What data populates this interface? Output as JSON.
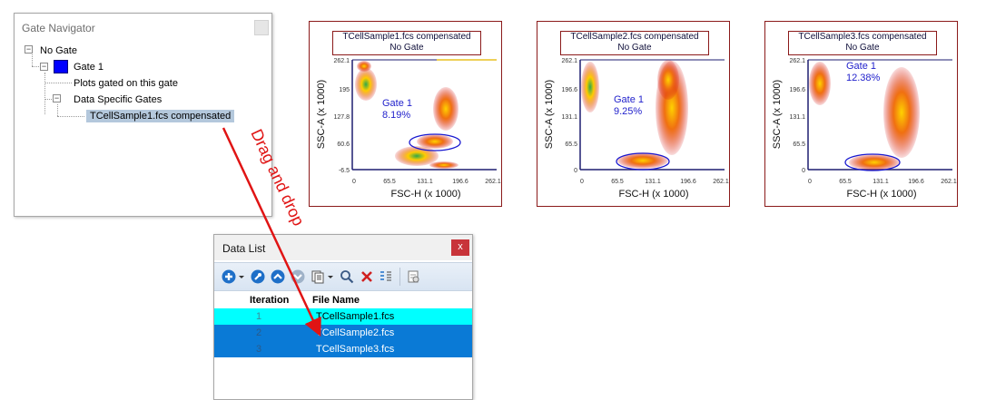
{
  "gate_navigator": {
    "title": "Gate Navigator",
    "tree": {
      "root": "No Gate",
      "gate": "Gate 1",
      "plots_node": "Plots gated on this gate",
      "data_specific": "Data Specific Gates",
      "selected_item": "TCellSample1.fcs compensated"
    }
  },
  "annotation": {
    "text": "Drag and drop",
    "color": "#e01414"
  },
  "plots": [
    {
      "title": "TCellSample1.fcs compensated",
      "subtitle": "No Gate",
      "xlabel": "FSC-H (x 1000)",
      "ylabel": "SSC-A (x 1000)",
      "xticks": [
        "0",
        "65.5",
        "131.1",
        "196.6",
        "262.1"
      ],
      "yticks": [
        "262.1",
        "195",
        "127.8",
        "60.6",
        "-6.5"
      ],
      "gate_label": "Gate 1",
      "gate_pct": "8.19%"
    },
    {
      "title": "TCellSample2.fcs compensated",
      "subtitle": "No Gate",
      "xlabel": "FSC-H (x 1000)",
      "ylabel": "SSC-A (x 1000)",
      "xticks": [
        "0",
        "65.5",
        "131.1",
        "196.6",
        "262.1"
      ],
      "yticks": [
        "262.1",
        "196.6",
        "131.1",
        "65.5",
        "0"
      ],
      "gate_label": "Gate 1",
      "gate_pct": "9.25%"
    },
    {
      "title": "TCellSample3.fcs compensated",
      "subtitle": "No Gate",
      "xlabel": "FSC-H (x 1000)",
      "ylabel": "SSC-A (x 1000)",
      "xticks": [
        "0",
        "65.5",
        "131.1",
        "196.6",
        "262.1"
      ],
      "yticks": [
        "262.1",
        "196.6",
        "131.1",
        "65.5",
        "0"
      ],
      "gate_label": "Gate 1",
      "gate_pct": "12.38%"
    }
  ],
  "data_list": {
    "title": "Data List",
    "close": "x",
    "columns": {
      "iteration": "Iteration",
      "file_name": "File Name"
    },
    "rows": [
      {
        "iteration": "1",
        "file": "TCellSample1.fcs"
      },
      {
        "iteration": "2",
        "file": "TCellSample2.fcs"
      },
      {
        "iteration": "3",
        "file": "TCellSample3.fcs"
      }
    ],
    "toolbar_icons": [
      "add-icon",
      "dropdown-arrow-icon",
      "wrench-icon",
      "arrow-up-icon",
      "arrow-down-icon",
      "copy-icon",
      "dropdown-arrow-icon",
      "search-icon",
      "delete-icon",
      "sort-icon",
      "properties-icon"
    ]
  },
  "colors": {
    "row_highlight_first": "#00ffff",
    "row_highlight_selected": "#0a7ad6",
    "gate_ellipse": "#1a1ad0",
    "gate_text": "#2222cc",
    "plot_border": "#8b1a1a"
  }
}
